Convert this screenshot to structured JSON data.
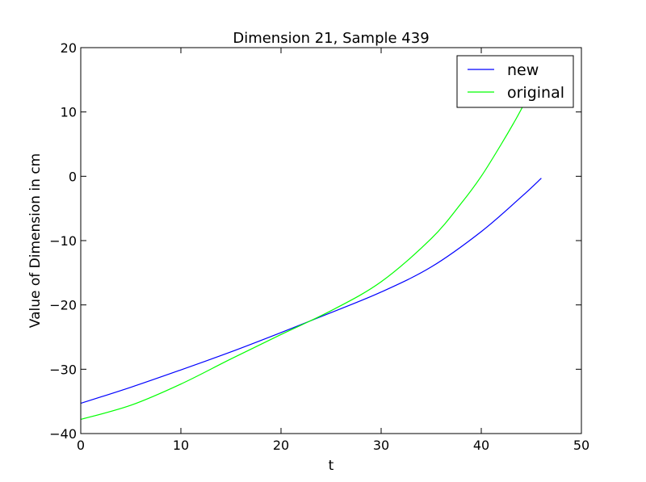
{
  "chart_data": {
    "type": "line",
    "title": "Dimension 21, Sample 439",
    "xlabel": "t",
    "ylabel": "Value of Dimension in cm",
    "xlim": [
      0,
      50
    ],
    "ylim": [
      -40,
      20
    ],
    "xticks": [
      0,
      10,
      20,
      30,
      40,
      50
    ],
    "yticks": [
      -40,
      -30,
      -20,
      -10,
      0,
      10,
      20
    ],
    "xtick_labels": [
      "0",
      "10",
      "20",
      "30",
      "40",
      "50"
    ],
    "ytick_labels": [
      "−40",
      "−30",
      "−20",
      "−10",
      "0",
      "10",
      "20"
    ],
    "grid": false,
    "legend_position": "top-right",
    "series": [
      {
        "name": "new",
        "color": "#0000ff",
        "x": [
          0,
          5,
          10,
          15,
          20,
          25,
          30,
          35,
          40,
          44,
          46
        ],
        "y": [
          -35.3,
          -32.8,
          -30.1,
          -27.3,
          -24.3,
          -21.2,
          -18.0,
          -14.1,
          -8.6,
          -3.2,
          -0.3
        ]
      },
      {
        "name": "original",
        "color": "#00ff00",
        "x": [
          0,
          5,
          10,
          15,
          20,
          25,
          30,
          35,
          38,
          40,
          42,
          43.5,
          44.6
        ],
        "y": [
          -37.8,
          -35.6,
          -32.3,
          -28.4,
          -24.6,
          -20.9,
          -16.4,
          -9.7,
          -4.2,
          0.0,
          5.0,
          9.0,
          12.2
        ]
      }
    ]
  }
}
